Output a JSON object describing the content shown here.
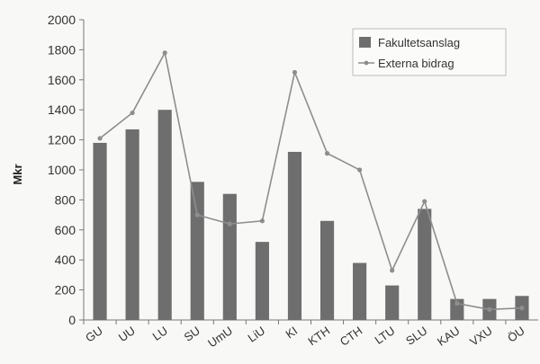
{
  "chart_data": {
    "type": "bar",
    "categories": [
      "GU",
      "UU",
      "LU",
      "SU",
      "UmU",
      "LiU",
      "KI",
      "KTH",
      "CTH",
      "LTU",
      "SLU",
      "KAU",
      "VXU",
      "ÖU"
    ],
    "series": [
      {
        "name": "Fakultetsanslag",
        "type": "bar",
        "color": "#6e6e6e",
        "values": [
          1180,
          1270,
          1400,
          920,
          840,
          520,
          1120,
          660,
          380,
          230,
          740,
          140,
          140,
          160
        ]
      },
      {
        "name": "Externa bidrag",
        "type": "line",
        "color": "#8e8e8e",
        "values": [
          1210,
          1380,
          1780,
          700,
          640,
          660,
          1650,
          1110,
          1000,
          330,
          790,
          110,
          70,
          80
        ]
      }
    ],
    "ylabel": "Mkr",
    "xlabel": "",
    "title": "",
    "ylim": [
      0,
      2000
    ],
    "yticks": [
      0,
      200,
      400,
      600,
      800,
      1000,
      1200,
      1400,
      1600,
      1800,
      2000
    ],
    "legend_position": "top-right",
    "grid": false
  }
}
